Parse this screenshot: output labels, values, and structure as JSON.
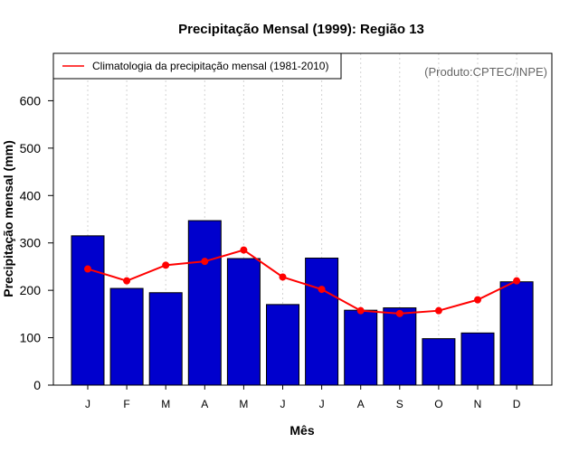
{
  "chart_data": {
    "type": "bar",
    "title": "Precipitação Mensal (1999): Região 13",
    "xlabel": "Mês",
    "ylabel": "Precipitação mensal (mm)",
    "ylim": [
      0,
      700
    ],
    "yticks": [
      0,
      100,
      200,
      300,
      400,
      500,
      600
    ],
    "categories": [
      "J",
      "F",
      "M",
      "A",
      "M",
      "J",
      "J",
      "A",
      "S",
      "O",
      "N",
      "D"
    ],
    "series": [
      {
        "name": "Precipitação mensal (1999)",
        "type": "bar",
        "color": "#0000CD",
        "values": [
          315,
          204,
          195,
          347,
          267,
          170,
          268,
          158,
          163,
          98,
          110,
          218
        ]
      },
      {
        "name": "Climatologia da precipitação mensal (1981-2010)",
        "type": "line",
        "color": "#FF0000",
        "values": [
          245,
          220,
          253,
          261,
          285,
          228,
          202,
          157,
          151,
          157,
          180,
          220
        ]
      }
    ],
    "legend": {
      "label": "Climatologia da precipitação mensal (1981-2010)",
      "position": "top-left"
    },
    "credit": "(Produto:CPTEC/INPE)",
    "grid": {
      "vertical": true,
      "horizontal": false
    }
  }
}
